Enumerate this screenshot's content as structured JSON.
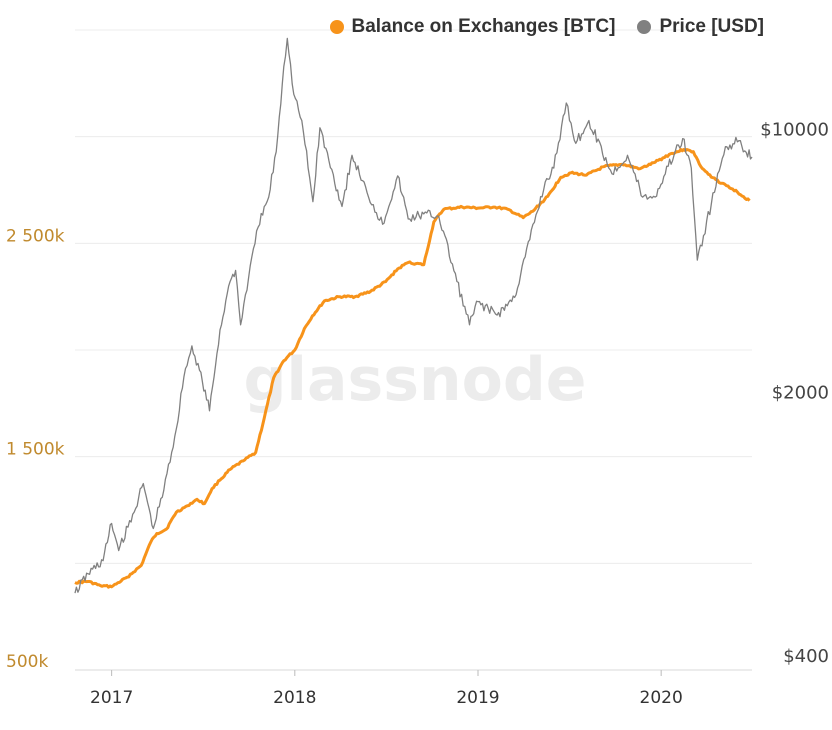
{
  "legend": {
    "balance_label": "Balance on Exchanges [BTC]",
    "price_label": "Price [USD]"
  },
  "watermark": "glassnode",
  "colors": {
    "balance": "#f7931a",
    "price": "#808080",
    "left_axis": "#c08a2e",
    "right_axis": "#444444",
    "grid": "#ececec"
  },
  "chart_data": {
    "type": "line",
    "title": "",
    "x_range": [
      "2016-10-20",
      "2020-06-30"
    ],
    "x_ticks": [
      {
        "date": "2017-01-01",
        "label": "2017"
      },
      {
        "date": "2018-01-01",
        "label": "2018"
      },
      {
        "date": "2019-01-01",
        "label": "2019"
      },
      {
        "date": "2020-01-01",
        "label": "2020"
      }
    ],
    "y_left": {
      "label": "",
      "scale": "linear",
      "range": [
        500000,
        3500000
      ],
      "ticks": [
        {
          "value": 500000,
          "label": "500k"
        },
        {
          "value": 1500000,
          "label": "1 500k"
        },
        {
          "value": 2500000,
          "label": "2 500k"
        }
      ]
    },
    "y_right": {
      "label": "",
      "scale": "log",
      "range": [
        400,
        20000
      ],
      "ticks": [
        {
          "value": 400,
          "label": "$400"
        },
        {
          "value": 2000,
          "label": "$2000"
        },
        {
          "value": 10000,
          "label": "$10000"
        }
      ]
    },
    "grid": true,
    "legend_position": "top-right",
    "series": [
      {
        "name": "Balance on Exchanges [BTC]",
        "axis": "left",
        "points": [
          [
            "2016-10-20",
            910000
          ],
          [
            "2016-11-15",
            915000
          ],
          [
            "2016-12-10",
            895000
          ],
          [
            "2017-01-01",
            890000
          ],
          [
            "2017-02-01",
            935000
          ],
          [
            "2017-03-01",
            990000
          ],
          [
            "2017-03-20",
            1100000
          ],
          [
            "2017-04-01",
            1140000
          ],
          [
            "2017-04-20",
            1160000
          ],
          [
            "2017-05-10",
            1240000
          ],
          [
            "2017-06-01",
            1270000
          ],
          [
            "2017-06-20",
            1300000
          ],
          [
            "2017-07-05",
            1280000
          ],
          [
            "2017-07-20",
            1350000
          ],
          [
            "2017-08-05",
            1390000
          ],
          [
            "2017-08-25",
            1440000
          ],
          [
            "2017-09-20",
            1480000
          ],
          [
            "2017-10-15",
            1520000
          ],
          [
            "2017-11-01",
            1680000
          ],
          [
            "2017-11-20",
            1870000
          ],
          [
            "2017-12-10",
            1950000
          ],
          [
            "2018-01-01",
            2000000
          ],
          [
            "2018-01-20",
            2100000
          ],
          [
            "2018-02-05",
            2160000
          ],
          [
            "2018-03-01",
            2230000
          ],
          [
            "2018-04-01",
            2250000
          ],
          [
            "2018-05-01",
            2250000
          ],
          [
            "2018-06-01",
            2275000
          ],
          [
            "2018-07-01",
            2320000
          ],
          [
            "2018-07-25",
            2380000
          ],
          [
            "2018-08-15",
            2410000
          ],
          [
            "2018-09-15",
            2400000
          ],
          [
            "2018-10-05",
            2600000
          ],
          [
            "2018-10-25",
            2660000
          ],
          [
            "2018-12-01",
            2670000
          ],
          [
            "2019-01-01",
            2665000
          ],
          [
            "2019-02-01",
            2670000
          ],
          [
            "2019-03-01",
            2660000
          ],
          [
            "2019-04-01",
            2620000
          ],
          [
            "2019-04-20",
            2650000
          ],
          [
            "2019-05-20",
            2720000
          ],
          [
            "2019-06-15",
            2810000
          ],
          [
            "2019-07-05",
            2830000
          ],
          [
            "2019-08-05",
            2820000
          ],
          [
            "2019-09-10",
            2860000
          ],
          [
            "2019-10-15",
            2870000
          ],
          [
            "2019-11-20",
            2850000
          ],
          [
            "2019-12-20",
            2880000
          ],
          [
            "2020-01-20",
            2920000
          ],
          [
            "2020-02-15",
            2940000
          ],
          [
            "2020-03-05",
            2930000
          ],
          [
            "2020-03-20",
            2860000
          ],
          [
            "2020-04-10",
            2810000
          ],
          [
            "2020-05-10",
            2770000
          ],
          [
            "2020-06-01",
            2740000
          ],
          [
            "2020-06-25",
            2700000
          ]
        ]
      },
      {
        "name": "Price [USD]",
        "axis": "right",
        "points": [
          [
            "2016-10-20",
            640
          ],
          [
            "2016-11-15",
            720
          ],
          [
            "2016-12-15",
            780
          ],
          [
            "2017-01-01",
            980
          ],
          [
            "2017-01-15",
            830
          ],
          [
            "2017-02-15",
            1050
          ],
          [
            "2017-03-05",
            1250
          ],
          [
            "2017-03-25",
            950
          ],
          [
            "2017-04-15",
            1200
          ],
          [
            "2017-05-10",
            1750
          ],
          [
            "2017-05-25",
            2400
          ],
          [
            "2017-06-10",
            2900
          ],
          [
            "2017-06-25",
            2500
          ],
          [
            "2017-07-15",
            1950
          ],
          [
            "2017-08-05",
            3200
          ],
          [
            "2017-08-25",
            4300
          ],
          [
            "2017-09-05",
            4600
          ],
          [
            "2017-09-15",
            3300
          ],
          [
            "2017-10-01",
            4400
          ],
          [
            "2017-10-20",
            6000
          ],
          [
            "2017-11-10",
            7200
          ],
          [
            "2017-11-25",
            9500
          ],
          [
            "2017-12-10",
            16000
          ],
          [
            "2017-12-17",
            19000
          ],
          [
            "2017-12-30",
            13500
          ],
          [
            "2018-01-15",
            11500
          ],
          [
            "2018-02-06",
            7000
          ],
          [
            "2018-02-20",
            11000
          ],
          [
            "2018-03-10",
            9000
          ],
          [
            "2018-04-05",
            6800
          ],
          [
            "2018-04-25",
            9300
          ],
          [
            "2018-05-25",
            7400
          ],
          [
            "2018-06-25",
            6100
          ],
          [
            "2018-07-25",
            8200
          ],
          [
            "2018-08-15",
            6300
          ],
          [
            "2018-09-15",
            6500
          ],
          [
            "2018-10-15",
            6400
          ],
          [
            "2018-11-20",
            4300
          ],
          [
            "2018-12-15",
            3300
          ],
          [
            "2019-01-01",
            3800
          ],
          [
            "2019-02-08",
            3500
          ],
          [
            "2019-03-15",
            3900
          ],
          [
            "2019-04-05",
            5000
          ],
          [
            "2019-05-15",
            7900
          ],
          [
            "2019-06-01",
            8600
          ],
          [
            "2019-06-26",
            12800
          ],
          [
            "2019-07-15",
            10000
          ],
          [
            "2019-08-10",
            11500
          ],
          [
            "2019-09-25",
            8300
          ],
          [
            "2019-10-26",
            9300
          ],
          [
            "2019-11-25",
            7200
          ],
          [
            "2019-12-20",
            7200
          ],
          [
            "2020-01-15",
            8700
          ],
          [
            "2020-02-13",
            10300
          ],
          [
            "2020-03-01",
            8600
          ],
          [
            "2020-03-13",
            4900
          ],
          [
            "2020-04-10",
            6900
          ],
          [
            "2020-05-08",
            9800
          ],
          [
            "2020-06-01",
            10100
          ],
          [
            "2020-06-30",
            9200
          ]
        ]
      }
    ]
  }
}
